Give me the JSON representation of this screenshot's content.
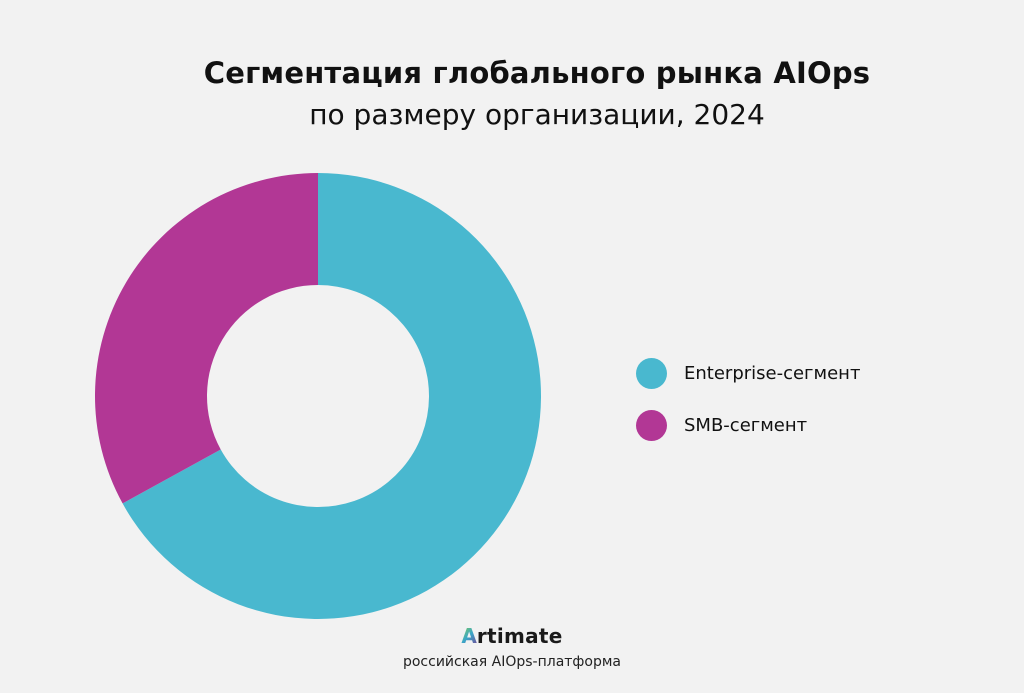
{
  "chart_data": {
    "type": "pie",
    "donut": true,
    "title": "Сегментация глобального рынка AIOps",
    "subtitle": "по размеру организации, 2024",
    "categories": [
      "Enterprise-сегмент",
      "SMB-сегмент"
    ],
    "values": [
      67,
      33
    ],
    "colors": [
      "#49b8cf",
      "#b23795"
    ],
    "legend_position": "right"
  },
  "footer": {
    "brand_initial": "A",
    "brand_rest": "rtimate",
    "tagline": "российская AIOps-платформа"
  },
  "colors": {
    "background": "#f2f2f2"
  }
}
